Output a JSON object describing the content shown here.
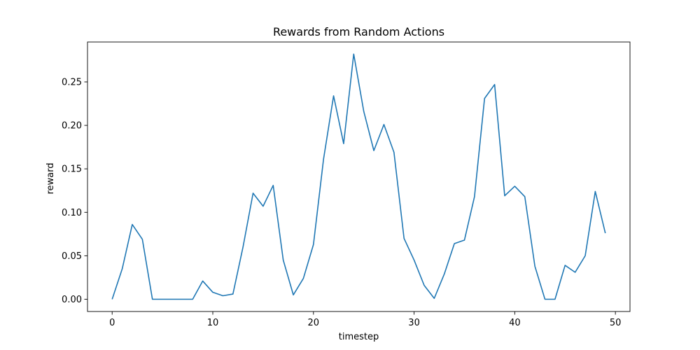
{
  "chart_data": {
    "type": "line",
    "title": "Rewards from Random Actions",
    "xlabel": "timestep",
    "ylabel": "reward",
    "xlim": [
      -2.45,
      51.45
    ],
    "ylim": [
      -0.0141,
      0.2959
    ],
    "xticks": [
      0,
      10,
      20,
      30,
      40,
      50
    ],
    "yticks": [
      0.0,
      0.05,
      0.1,
      0.15,
      0.2,
      0.25
    ],
    "ytick_labels": [
      "0.00",
      "0.05",
      "0.10",
      "0.15",
      "0.20",
      "0.25"
    ],
    "grid": false,
    "series": [
      {
        "color": "#1f77b4",
        "x": [
          0,
          1,
          2,
          3,
          4,
          5,
          6,
          7,
          8,
          9,
          10,
          11,
          12,
          13,
          14,
          15,
          16,
          17,
          18,
          19,
          20,
          21,
          22,
          23,
          24,
          25,
          26,
          27,
          28,
          29,
          30,
          31,
          32,
          33,
          34,
          35,
          36,
          37,
          38,
          39,
          40,
          41,
          42,
          43,
          44,
          45,
          46,
          47,
          48,
          49
        ],
        "values": [
          0.0,
          0.035,
          0.086,
          0.069,
          0.0,
          0.0,
          0.0,
          0.0,
          0.0,
          0.021,
          0.008,
          0.004,
          0.006,
          0.06,
          0.122,
          0.107,
          0.131,
          0.045,
          0.005,
          0.024,
          0.063,
          0.161,
          0.234,
          0.179,
          0.282,
          0.216,
          0.171,
          0.201,
          0.169,
          0.07,
          0.045,
          0.016,
          0.001,
          0.029,
          0.064,
          0.068,
          0.118,
          0.231,
          0.247,
          0.119,
          0.13,
          0.118,
          0.038,
          0.0,
          0.0,
          0.039,
          0.031,
          0.05,
          0.124,
          0.076
        ]
      }
    ]
  }
}
